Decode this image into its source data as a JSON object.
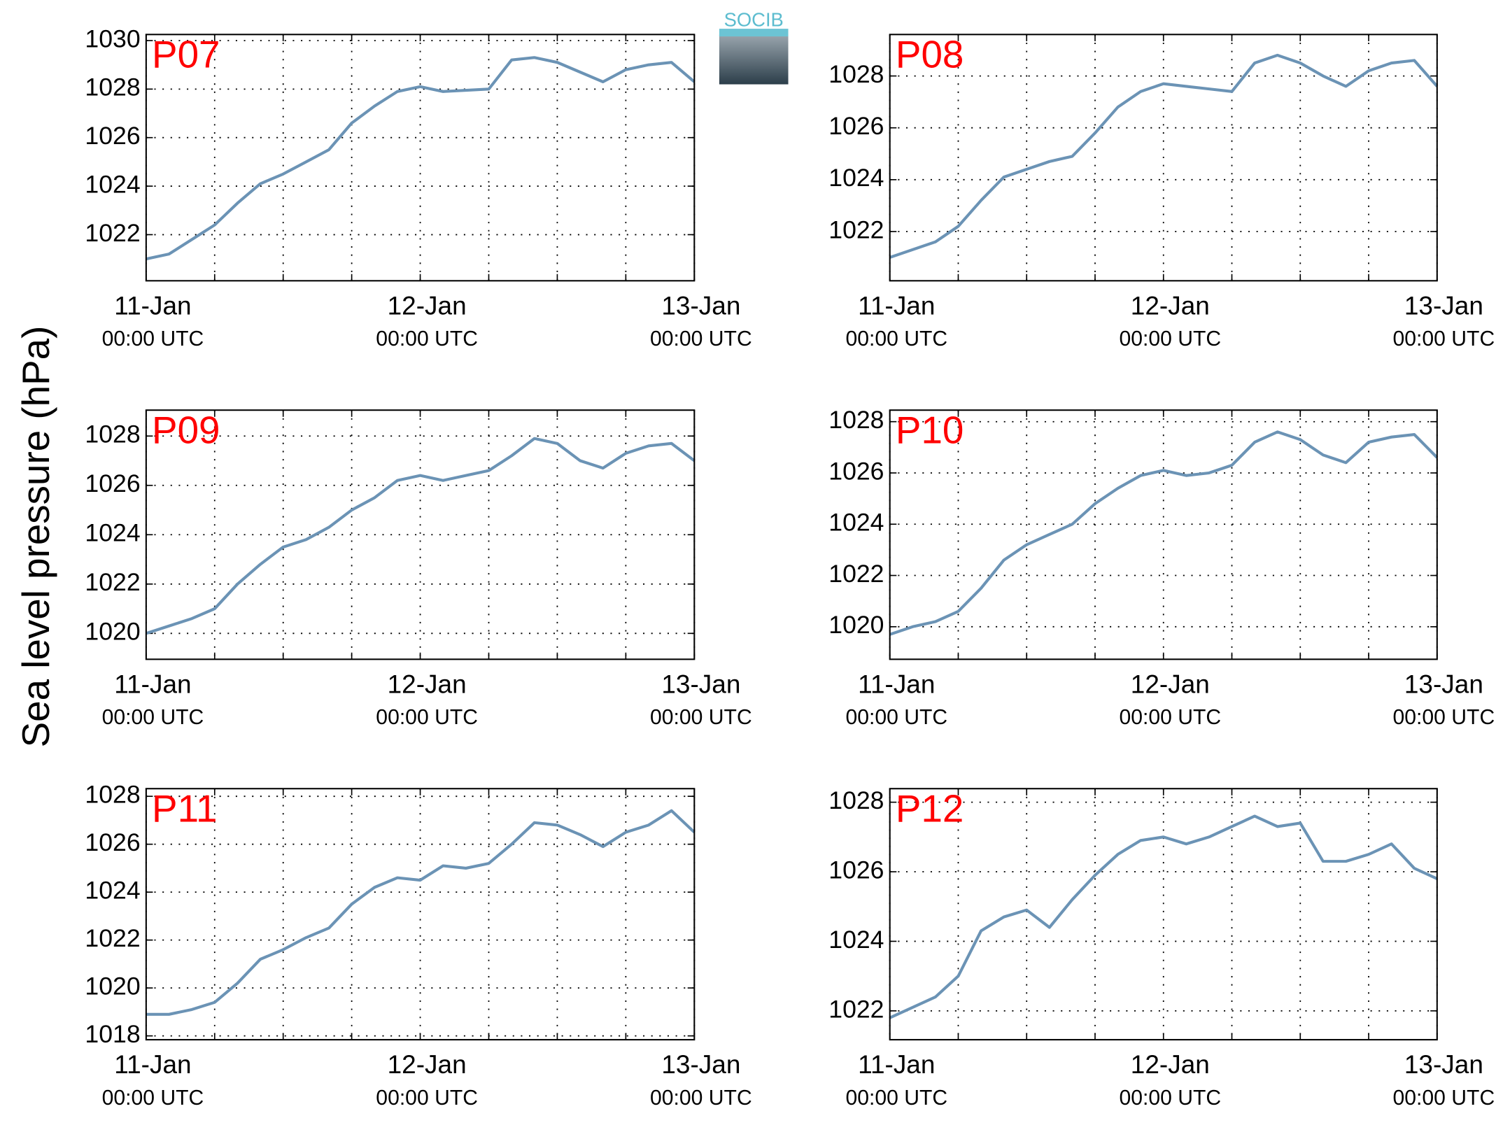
{
  "y_axis_label": "Sea level pressure (hPa)",
  "logo": "SOCIB",
  "chart_data": [
    {
      "type": "line",
      "title": "P07",
      "color": "#6b93b5",
      "grid": true,
      "x": [
        0,
        2,
        4,
        6,
        8,
        10,
        12,
        14,
        16,
        18,
        20,
        22,
        24,
        26,
        28,
        30,
        32,
        34,
        36,
        38,
        40,
        42,
        44,
        46,
        48
      ],
      "values": [
        1021.0,
        1021.2,
        1021.8,
        1022.4,
        1023.3,
        1024.1,
        1024.5,
        1025.0,
        1025.5,
        1026.6,
        1027.3,
        1027.9,
        1028.1,
        1027.9,
        1027.95,
        1028.0,
        1029.2,
        1029.3,
        1029.1,
        1028.7,
        1028.3,
        1028.8,
        1029.0,
        1029.1,
        1028.3
      ],
      "xlim": [
        0,
        48
      ],
      "xticks": [
        {
          "value": 0,
          "label": "11-Jan",
          "time": "00:00 UTC"
        },
        {
          "value": 24,
          "label": "12-Jan",
          "time": "00:00 UTC"
        },
        {
          "value": 48,
          "label": "13-Jan",
          "time": "00:00 UTC"
        }
      ],
      "xminorticks": [
        6,
        12,
        18,
        30,
        36,
        42
      ],
      "ylim": [
        1020.1,
        1030.25
      ],
      "yticks": [
        1022,
        1024,
        1026,
        1028,
        1030
      ]
    },
    {
      "type": "line",
      "title": "P08",
      "color": "#6b93b5",
      "grid": true,
      "x": [
        0,
        2,
        4,
        6,
        8,
        10,
        12,
        14,
        16,
        18,
        20,
        22,
        24,
        26,
        28,
        30,
        32,
        34,
        36,
        38,
        40,
        42,
        44,
        46,
        48
      ],
      "values": [
        1021.0,
        1021.3,
        1021.6,
        1022.2,
        1023.2,
        1024.1,
        1024.4,
        1024.7,
        1024.9,
        1025.8,
        1026.8,
        1027.4,
        1027.7,
        1027.6,
        1027.5,
        1027.4,
        1028.5,
        1028.8,
        1028.5,
        1028.0,
        1027.6,
        1028.2,
        1028.5,
        1028.6,
        1027.6
      ],
      "xlim": [
        0,
        48
      ],
      "xticks": [
        {
          "value": 0,
          "label": "11-Jan",
          "time": "00:00 UTC"
        },
        {
          "value": 24,
          "label": "12-Jan",
          "time": "00:00 UTC"
        },
        {
          "value": 48,
          "label": "13-Jan",
          "time": "00:00 UTC"
        }
      ],
      "xminorticks": [
        6,
        12,
        18,
        30,
        36,
        42
      ],
      "ylim": [
        1020.1,
        1029.6
      ],
      "yticks": [
        1022,
        1024,
        1026,
        1028
      ]
    },
    {
      "type": "line",
      "title": "P09",
      "color": "#6b93b5",
      "grid": true,
      "x": [
        0,
        2,
        4,
        6,
        8,
        10,
        12,
        14,
        16,
        18,
        20,
        22,
        24,
        26,
        28,
        30,
        32,
        34,
        36,
        38,
        40,
        42,
        44,
        46,
        48
      ],
      "values": [
        1020.0,
        1020.3,
        1020.6,
        1021.0,
        1022.0,
        1022.8,
        1023.5,
        1023.8,
        1024.3,
        1025.0,
        1025.5,
        1026.2,
        1026.4,
        1026.2,
        1026.4,
        1026.6,
        1027.2,
        1027.9,
        1027.7,
        1027.0,
        1026.7,
        1027.3,
        1027.6,
        1027.7,
        1027.0
      ],
      "xlim": [
        0,
        48
      ],
      "xticks": [
        {
          "value": 0,
          "label": "11-Jan",
          "time": "00:00 UTC"
        },
        {
          "value": 24,
          "label": "12-Jan",
          "time": "00:00 UTC"
        },
        {
          "value": 48,
          "label": "13-Jan",
          "time": "00:00 UTC"
        }
      ],
      "xminorticks": [
        6,
        12,
        18,
        30,
        36,
        42
      ],
      "ylim": [
        1018.95,
        1029.05
      ],
      "yticks": [
        1020,
        1022,
        1024,
        1026,
        1028
      ]
    },
    {
      "type": "line",
      "title": "P10",
      "color": "#6b93b5",
      "grid": true,
      "x": [
        0,
        2,
        4,
        6,
        8,
        10,
        12,
        14,
        16,
        18,
        20,
        22,
        24,
        26,
        28,
        30,
        32,
        34,
        36,
        38,
        40,
        42,
        44,
        46,
        48
      ],
      "values": [
        1019.7,
        1020.0,
        1020.2,
        1020.6,
        1021.5,
        1022.6,
        1023.2,
        1023.6,
        1024.0,
        1024.8,
        1025.4,
        1025.9,
        1026.1,
        1025.9,
        1026.0,
        1026.3,
        1027.2,
        1027.6,
        1027.3,
        1026.7,
        1026.4,
        1027.2,
        1027.4,
        1027.5,
        1026.6
      ],
      "xlim": [
        0,
        48
      ],
      "xticks": [
        {
          "value": 0,
          "label": "11-Jan",
          "time": "00:00 UTC"
        },
        {
          "value": 24,
          "label": "12-Jan",
          "time": "00:00 UTC"
        },
        {
          "value": 48,
          "label": "13-Jan",
          "time": "00:00 UTC"
        }
      ],
      "xminorticks": [
        6,
        12,
        18,
        30,
        36,
        42
      ],
      "ylim": [
        1018.73,
        1028.45
      ],
      "yticks": [
        1020,
        1022,
        1024,
        1026,
        1028
      ]
    },
    {
      "type": "line",
      "title": "P11",
      "color": "#6b93b5",
      "grid": true,
      "x": [
        0,
        2,
        4,
        6,
        8,
        10,
        12,
        14,
        16,
        18,
        20,
        22,
        24,
        26,
        28,
        30,
        32,
        34,
        36,
        38,
        40,
        42,
        44,
        46,
        48
      ],
      "values": [
        1018.9,
        1018.9,
        1019.1,
        1019.4,
        1020.2,
        1021.2,
        1021.6,
        1022.1,
        1022.5,
        1023.5,
        1024.2,
        1024.6,
        1024.5,
        1025.1,
        1025.0,
        1025.2,
        1026.0,
        1026.9,
        1026.8,
        1026.4,
        1025.9,
        1026.5,
        1026.8,
        1027.4,
        1026.5
      ],
      "xlim": [
        0,
        48
      ],
      "xticks": [
        {
          "value": 0,
          "label": "11-Jan",
          "time": "00:00 UTC"
        },
        {
          "value": 24,
          "label": "12-Jan",
          "time": "00:00 UTC"
        },
        {
          "value": 48,
          "label": "13-Jan",
          "time": "00:00 UTC"
        }
      ],
      "xminorticks": [
        6,
        12,
        18,
        30,
        36,
        42
      ],
      "ylim": [
        1017.84,
        1028.32
      ],
      "yticks": [
        1018,
        1020,
        1022,
        1024,
        1026,
        1028
      ]
    },
    {
      "type": "line",
      "title": "P12",
      "color": "#6b93b5",
      "grid": true,
      "x": [
        0,
        2,
        4,
        6,
        8,
        10,
        12,
        14,
        16,
        18,
        20,
        22,
        24,
        26,
        28,
        30,
        32,
        34,
        36,
        38,
        40,
        42,
        44,
        46,
        48
      ],
      "values": [
        1021.8,
        1022.1,
        1022.4,
        1023.0,
        1024.3,
        1024.7,
        1024.9,
        1024.4,
        1025.2,
        1025.9,
        1026.5,
        1026.9,
        1027.0,
        1026.8,
        1027.0,
        1027.3,
        1027.6,
        1027.3,
        1027.4,
        1026.3,
        1026.3,
        1026.5,
        1026.8,
        1026.1,
        1025.8
      ],
      "xlim": [
        0,
        48
      ],
      "xticks": [
        {
          "value": 0,
          "label": "11-Jan",
          "time": "00:00 UTC"
        },
        {
          "value": 24,
          "label": "12-Jan",
          "time": "00:00 UTC"
        },
        {
          "value": 48,
          "label": "13-Jan",
          "time": "00:00 UTC"
        }
      ],
      "xminorticks": [
        6,
        12,
        18,
        30,
        36,
        42
      ],
      "ylim": [
        1021.17,
        1028.39
      ],
      "yticks": [
        1022,
        1024,
        1026,
        1028
      ]
    }
  ]
}
